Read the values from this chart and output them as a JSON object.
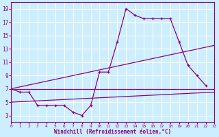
{
  "xlabel": "Windchill (Refroidissement éolien,°C)",
  "bg_color": "#cceeff",
  "grid_color": "#ffffff",
  "line_color": "#880088",
  "xmin": 0,
  "xmax": 23,
  "ymin": 2,
  "ymax": 20,
  "yticks": [
    3,
    5,
    7,
    9,
    11,
    13,
    15,
    17,
    19
  ],
  "xticks": [
    0,
    1,
    2,
    3,
    4,
    5,
    6,
    7,
    8,
    9,
    10,
    11,
    12,
    13,
    14,
    15,
    16,
    17,
    18,
    19,
    20,
    21,
    22,
    23
  ],
  "line1_x": [
    0,
    1,
    2,
    3,
    4,
    5,
    6,
    7,
    8,
    9,
    10,
    11,
    12,
    13,
    14,
    15,
    16,
    17,
    18,
    19,
    20,
    21,
    22
  ],
  "line1_y": [
    7,
    6.5,
    6.5,
    4.5,
    4.5,
    4.5,
    4.5,
    3.5,
    3.0,
    4.5,
    9.5,
    9.5,
    14,
    19,
    18,
    17.5,
    17.5,
    17.5,
    17.5,
    14,
    10.5,
    9,
    7.5
  ],
  "line2_x": [
    0,
    23
  ],
  "line2_y": [
    7,
    7
  ],
  "line3_x": [
    0,
    23
  ],
  "line3_y": [
    7,
    13.5
  ],
  "line4_x": [
    0,
    23
  ],
  "line4_y": [
    5.0,
    6.5
  ]
}
